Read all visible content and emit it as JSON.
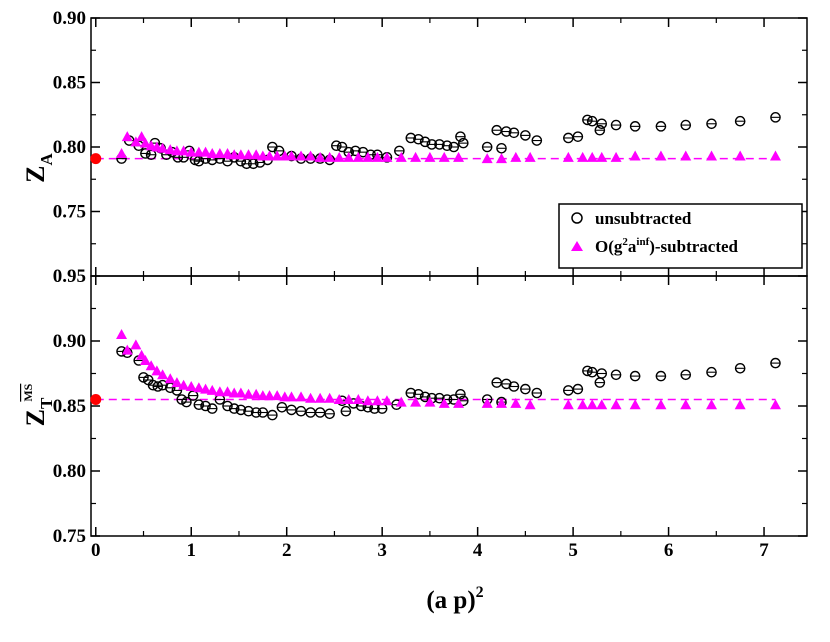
{
  "chart_data": {
    "type": "scatter",
    "x_range": [
      -0.05,
      7.45
    ],
    "x_ticks": [
      0,
      1,
      2,
      3,
      4,
      5,
      6,
      7
    ],
    "x_tick_labels": [
      "0",
      "1",
      "2",
      "3",
      "4",
      "5",
      "6",
      "7"
    ],
    "xlabel": {
      "base": "(a p)",
      "sup": "2"
    },
    "colors": {
      "unsubtracted": "#000000",
      "subtracted": "#ff00ff",
      "extrapolated": "#ff0000"
    },
    "legend": {
      "placement": "top-panel-lower-right",
      "unsubtracted": "unsubtracted",
      "subtracted_prefix": "O(g",
      "subtracted_sup1": "2",
      "subtracted_mid": "a",
      "subtracted_sup2": "inf",
      "subtracted_suffix": ")-subtracted"
    },
    "panels": [
      {
        "id": "ZA",
        "ylabel": {
          "base": "Z",
          "sub": "A"
        },
        "ylim": [
          0.7,
          0.9
        ],
        "y_ticks": [
          0.75,
          0.8,
          0.85,
          0.9
        ],
        "y_tick_labels": [
          "0.75",
          "0.80",
          "0.85",
          "0.90"
        ],
        "fit_value": 0.791,
        "extrapolated_point": [
          0.0,
          0.791
        ],
        "unsubtracted": [
          [
            0.27,
            0.791
          ],
          [
            0.35,
            0.805
          ],
          [
            0.45,
            0.801
          ],
          [
            0.52,
            0.795
          ],
          [
            0.58,
            0.794
          ],
          [
            0.62,
            0.803
          ],
          [
            0.68,
            0.799
          ],
          [
            0.74,
            0.794
          ],
          [
            0.8,
            0.796
          ],
          [
            0.86,
            0.792
          ],
          [
            0.92,
            0.792
          ],
          [
            0.98,
            0.797
          ],
          [
            1.04,
            0.79
          ],
          [
            1.08,
            0.789
          ],
          [
            1.15,
            0.791
          ],
          [
            1.22,
            0.79
          ],
          [
            1.3,
            0.791
          ],
          [
            1.38,
            0.789
          ],
          [
            1.45,
            0.792
          ],
          [
            1.52,
            0.789
          ],
          [
            1.58,
            0.787
          ],
          [
            1.65,
            0.787
          ],
          [
            1.72,
            0.788
          ],
          [
            1.8,
            0.79
          ],
          [
            1.85,
            0.8
          ],
          [
            1.92,
            0.797
          ],
          [
            2.05,
            0.793
          ],
          [
            2.15,
            0.791
          ],
          [
            2.25,
            0.791
          ],
          [
            2.35,
            0.791
          ],
          [
            2.45,
            0.79
          ],
          [
            2.52,
            0.801
          ],
          [
            2.58,
            0.8
          ],
          [
            2.65,
            0.796
          ],
          [
            2.72,
            0.797
          ],
          [
            2.8,
            0.796
          ],
          [
            2.88,
            0.794
          ],
          [
            2.95,
            0.794
          ],
          [
            3.05,
            0.792
          ],
          [
            3.18,
            0.797
          ],
          [
            3.3,
            0.807
          ],
          [
            3.38,
            0.806
          ],
          [
            3.45,
            0.804
          ],
          [
            3.52,
            0.802
          ],
          [
            3.6,
            0.802
          ],
          [
            3.68,
            0.801
          ],
          [
            3.75,
            0.8
          ],
          [
            3.82,
            0.808
          ],
          [
            3.85,
            0.803
          ],
          [
            4.1,
            0.8
          ],
          [
            4.2,
            0.813
          ],
          [
            4.25,
            0.799
          ],
          [
            4.3,
            0.812
          ],
          [
            4.38,
            0.811
          ],
          [
            4.5,
            0.809
          ],
          [
            4.62,
            0.805
          ],
          [
            4.95,
            0.807
          ],
          [
            5.05,
            0.808
          ],
          [
            5.15,
            0.821
          ],
          [
            5.2,
            0.82
          ],
          [
            5.28,
            0.813
          ],
          [
            5.3,
            0.818
          ],
          [
            5.45,
            0.817
          ],
          [
            5.65,
            0.816
          ],
          [
            5.92,
            0.816
          ],
          [
            6.18,
            0.817
          ],
          [
            6.45,
            0.818
          ],
          [
            6.75,
            0.82
          ],
          [
            7.12,
            0.823
          ]
        ],
        "subtracted": [
          [
            0.27,
            0.795
          ],
          [
            0.33,
            0.808
          ],
          [
            0.42,
            0.804
          ],
          [
            0.48,
            0.808
          ],
          [
            0.52,
            0.803
          ],
          [
            0.58,
            0.801
          ],
          [
            0.64,
            0.8
          ],
          [
            0.7,
            0.799
          ],
          [
            0.78,
            0.798
          ],
          [
            0.85,
            0.797
          ],
          [
            0.92,
            0.797
          ],
          [
            1.0,
            0.796
          ],
          [
            1.08,
            0.796
          ],
          [
            1.15,
            0.796
          ],
          [
            1.22,
            0.795
          ],
          [
            1.3,
            0.795
          ],
          [
            1.38,
            0.795
          ],
          [
            1.45,
            0.794
          ],
          [
            1.52,
            0.794
          ],
          [
            1.6,
            0.794
          ],
          [
            1.68,
            0.794
          ],
          [
            1.75,
            0.793
          ],
          [
            1.82,
            0.793
          ],
          [
            1.9,
            0.793
          ],
          [
            1.98,
            0.793
          ],
          [
            2.05,
            0.793
          ],
          [
            2.15,
            0.793
          ],
          [
            2.25,
            0.793
          ],
          [
            2.35,
            0.792
          ],
          [
            2.45,
            0.792
          ],
          [
            2.55,
            0.792
          ],
          [
            2.65,
            0.792
          ],
          [
            2.75,
            0.792
          ],
          [
            2.85,
            0.792
          ],
          [
            2.95,
            0.792
          ],
          [
            3.05,
            0.792
          ],
          [
            3.2,
            0.792
          ],
          [
            3.35,
            0.792
          ],
          [
            3.5,
            0.792
          ],
          [
            3.65,
            0.792
          ],
          [
            3.8,
            0.792
          ],
          [
            4.1,
            0.791
          ],
          [
            4.25,
            0.791
          ],
          [
            4.4,
            0.792
          ],
          [
            4.55,
            0.792
          ],
          [
            4.95,
            0.792
          ],
          [
            5.1,
            0.792
          ],
          [
            5.2,
            0.792
          ],
          [
            5.3,
            0.792
          ],
          [
            5.45,
            0.792
          ],
          [
            5.65,
            0.793
          ],
          [
            5.92,
            0.793
          ],
          [
            6.18,
            0.793
          ],
          [
            6.45,
            0.793
          ],
          [
            6.75,
            0.793
          ],
          [
            7.12,
            0.793
          ]
        ]
      },
      {
        "id": "ZT",
        "ylabel": {
          "base": "Z",
          "sub": "T",
          "sup": "MS"
        },
        "ylim": [
          0.75,
          0.95
        ],
        "y_ticks": [
          0.75,
          0.8,
          0.85,
          0.9,
          0.95
        ],
        "y_tick_labels": [
          "0.75",
          "0.80",
          "0.85",
          "0.90",
          "0.95"
        ],
        "fit_value": 0.855,
        "extrapolated_point": [
          0.0,
          0.855
        ],
        "unsubtracted": [
          [
            0.27,
            0.892
          ],
          [
            0.33,
            0.891
          ],
          [
            0.45,
            0.885
          ],
          [
            0.5,
            0.872
          ],
          [
            0.55,
            0.87
          ],
          [
            0.6,
            0.866
          ],
          [
            0.65,
            0.865
          ],
          [
            0.7,
            0.866
          ],
          [
            0.78,
            0.864
          ],
          [
            0.85,
            0.862
          ],
          [
            0.9,
            0.855
          ],
          [
            0.95,
            0.853
          ],
          [
            1.02,
            0.858
          ],
          [
            1.08,
            0.851
          ],
          [
            1.15,
            0.85
          ],
          [
            1.22,
            0.848
          ],
          [
            1.3,
            0.855
          ],
          [
            1.38,
            0.85
          ],
          [
            1.45,
            0.848
          ],
          [
            1.52,
            0.847
          ],
          [
            1.6,
            0.846
          ],
          [
            1.68,
            0.845
          ],
          [
            1.75,
            0.845
          ],
          [
            1.85,
            0.843
          ],
          [
            1.95,
            0.849
          ],
          [
            2.05,
            0.847
          ],
          [
            2.15,
            0.846
          ],
          [
            2.25,
            0.845
          ],
          [
            2.35,
            0.845
          ],
          [
            2.45,
            0.844
          ],
          [
            2.58,
            0.854
          ],
          [
            2.62,
            0.846
          ],
          [
            2.7,
            0.852
          ],
          [
            2.78,
            0.85
          ],
          [
            2.85,
            0.849
          ],
          [
            2.92,
            0.848
          ],
          [
            3.0,
            0.848
          ],
          [
            3.15,
            0.851
          ],
          [
            3.3,
            0.86
          ],
          [
            3.38,
            0.859
          ],
          [
            3.45,
            0.857
          ],
          [
            3.52,
            0.856
          ],
          [
            3.6,
            0.856
          ],
          [
            3.68,
            0.855
          ],
          [
            3.75,
            0.855
          ],
          [
            3.82,
            0.859
          ],
          [
            3.85,
            0.854
          ],
          [
            4.1,
            0.855
          ],
          [
            4.2,
            0.868
          ],
          [
            4.25,
            0.853
          ],
          [
            4.3,
            0.867
          ],
          [
            4.38,
            0.865
          ],
          [
            4.5,
            0.863
          ],
          [
            4.62,
            0.86
          ],
          [
            4.95,
            0.862
          ],
          [
            5.05,
            0.863
          ],
          [
            5.15,
            0.877
          ],
          [
            5.2,
            0.876
          ],
          [
            5.28,
            0.868
          ],
          [
            5.3,
            0.875
          ],
          [
            5.45,
            0.874
          ],
          [
            5.65,
            0.873
          ],
          [
            5.92,
            0.873
          ],
          [
            6.18,
            0.874
          ],
          [
            6.45,
            0.876
          ],
          [
            6.75,
            0.879
          ],
          [
            7.12,
            0.883
          ]
        ],
        "subtracted": [
          [
            0.27,
            0.905
          ],
          [
            0.33,
            0.893
          ],
          [
            0.42,
            0.897
          ],
          [
            0.48,
            0.889
          ],
          [
            0.52,
            0.885
          ],
          [
            0.58,
            0.881
          ],
          [
            0.64,
            0.877
          ],
          [
            0.7,
            0.874
          ],
          [
            0.78,
            0.871
          ],
          [
            0.85,
            0.868
          ],
          [
            0.92,
            0.866
          ],
          [
            1.0,
            0.865
          ],
          [
            1.08,
            0.864
          ],
          [
            1.15,
            0.863
          ],
          [
            1.22,
            0.862
          ],
          [
            1.3,
            0.861
          ],
          [
            1.38,
            0.861
          ],
          [
            1.45,
            0.86
          ],
          [
            1.52,
            0.86
          ],
          [
            1.6,
            0.859
          ],
          [
            1.68,
            0.859
          ],
          [
            1.75,
            0.858
          ],
          [
            1.82,
            0.858
          ],
          [
            1.9,
            0.858
          ],
          [
            1.98,
            0.857
          ],
          [
            2.05,
            0.857
          ],
          [
            2.15,
            0.857
          ],
          [
            2.25,
            0.856
          ],
          [
            2.35,
            0.856
          ],
          [
            2.45,
            0.856
          ],
          [
            2.55,
            0.855
          ],
          [
            2.65,
            0.855
          ],
          [
            2.75,
            0.855
          ],
          [
            2.85,
            0.854
          ],
          [
            2.95,
            0.854
          ],
          [
            3.05,
            0.854
          ],
          [
            3.2,
            0.853
          ],
          [
            3.35,
            0.853
          ],
          [
            3.5,
            0.853
          ],
          [
            3.65,
            0.852
          ],
          [
            3.8,
            0.852
          ],
          [
            4.1,
            0.852
          ],
          [
            4.25,
            0.852
          ],
          [
            4.4,
            0.852
          ],
          [
            4.55,
            0.851
          ],
          [
            4.95,
            0.851
          ],
          [
            5.1,
            0.851
          ],
          [
            5.2,
            0.851
          ],
          [
            5.3,
            0.851
          ],
          [
            5.45,
            0.851
          ],
          [
            5.65,
            0.851
          ],
          [
            5.92,
            0.851
          ],
          [
            6.18,
            0.851
          ],
          [
            6.45,
            0.851
          ],
          [
            6.75,
            0.851
          ],
          [
            7.12,
            0.851
          ]
        ]
      }
    ]
  }
}
